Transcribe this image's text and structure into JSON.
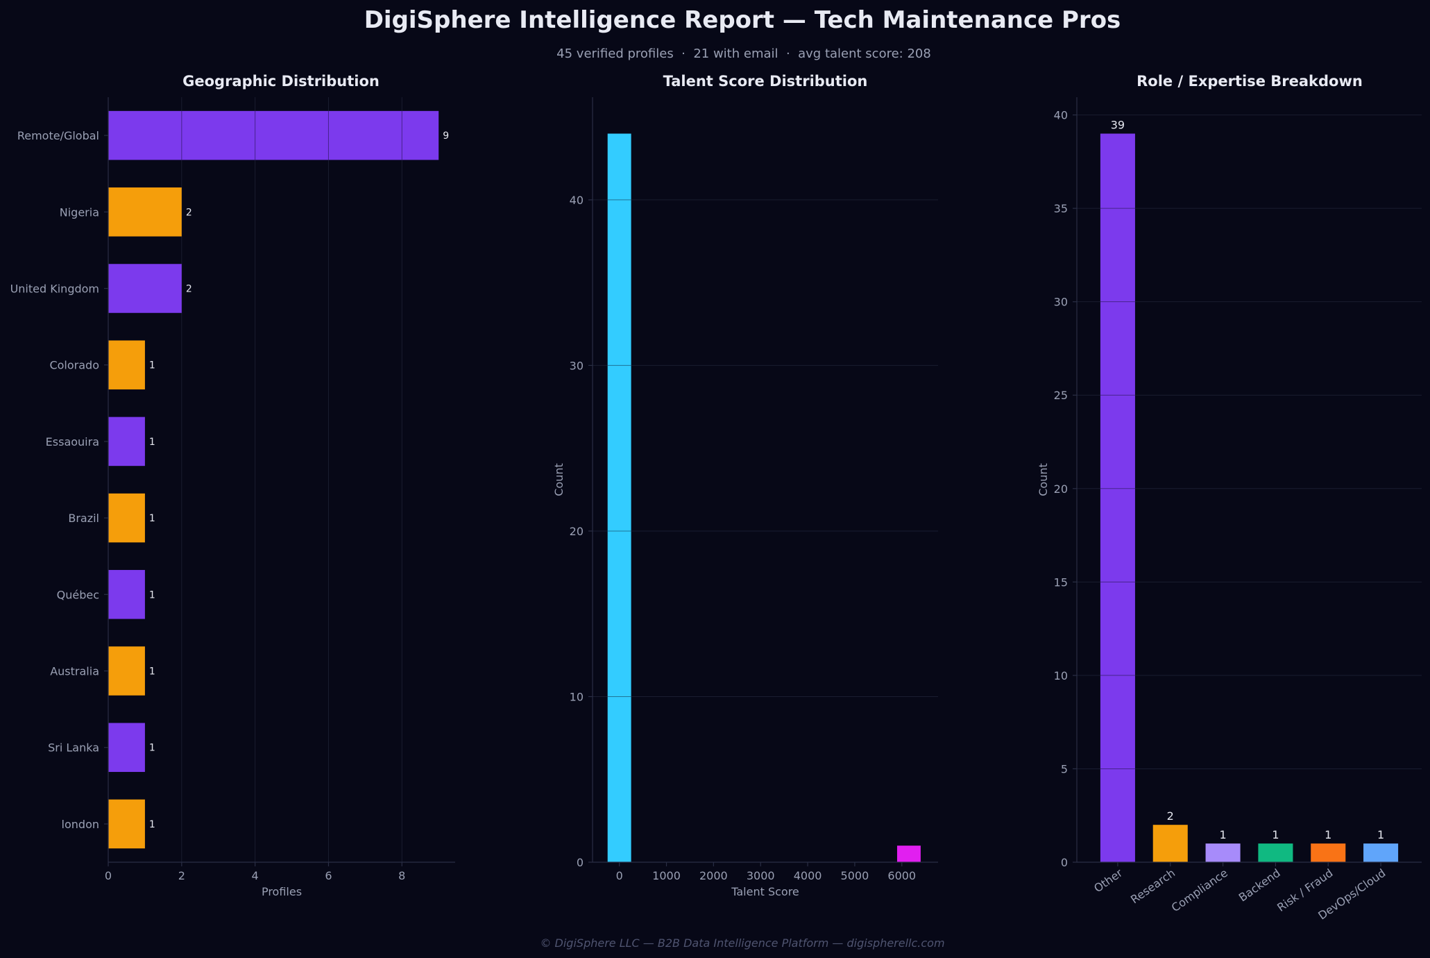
{
  "header": {
    "title": "DigiSphere Intelligence Report — Tech Maintenance Pros",
    "subtitle": "45 verified profiles  ·  21 with email  ·  avg talent score: 208"
  },
  "footer": "© DigiSphere LLC — B2B Data Intelligence Platform — digispherellc.com",
  "colors": {
    "purple": "#7c3aed",
    "orange": "#f59e0b",
    "cyan": "#33ccff",
    "magenta": "#e11ff0",
    "lavender": "#a78bfa",
    "green": "#10b981",
    "red_orange": "#f97316",
    "blue": "#60a5fa"
  },
  "chart_data": [
    {
      "type": "bar",
      "orientation": "horizontal",
      "title": "Geographic Distribution",
      "xlabel": "Profiles",
      "ylabel": "",
      "categories": [
        "Remote/Global",
        "Nigeria",
        "United Kingdom",
        "Colorado",
        "Essaouira",
        "Brazil",
        "Québec",
        "Australia",
        "Sri Lanka",
        "london"
      ],
      "values": [
        9,
        2,
        2,
        1,
        1,
        1,
        1,
        1,
        1,
        1
      ],
      "value_labels": [
        "9",
        "2",
        "2",
        "1",
        "1",
        "1",
        "1",
        "1",
        "1",
        "1"
      ],
      "bar_colors": [
        "#7c3aed",
        "#f59e0b",
        "#7c3aed",
        "#f59e0b",
        "#7c3aed",
        "#f59e0b",
        "#7c3aed",
        "#f59e0b",
        "#7c3aed",
        "#f59e0b"
      ],
      "xticks": [
        0,
        2,
        4,
        6,
        8
      ],
      "xtick_labels": [
        "0",
        "2",
        "4",
        "6",
        "8"
      ],
      "xlim": [
        0,
        9.45
      ],
      "grid": true
    },
    {
      "type": "histogram",
      "title": "Talent Score Distribution",
      "xlabel": "Talent Score",
      "ylabel": "Count",
      "bins": [
        {
          "x0": -250,
          "x1": 250,
          "count": 44,
          "color": "#33ccff"
        },
        {
          "x0": 5900,
          "x1": 6400,
          "count": 1,
          "color": "#e11ff0"
        }
      ],
      "xticks": [
        0,
        1000,
        2000,
        3000,
        4000,
        5000,
        6000
      ],
      "xtick_labels": [
        "0",
        "1000",
        "2000",
        "3000",
        "4000",
        "5000",
        "6000"
      ],
      "yticks": [
        0,
        10,
        20,
        30,
        40
      ],
      "ytick_labels": [
        "0",
        "10",
        "20",
        "30",
        "40"
      ],
      "xlim": [
        -570,
        6770
      ],
      "ylim": [
        0,
        46.2
      ],
      "grid": true
    },
    {
      "type": "bar",
      "orientation": "vertical",
      "title": "Role / Expertise Breakdown",
      "xlabel": "",
      "ylabel": "Count",
      "categories": [
        "Other",
        "Research",
        "Compliance",
        "Backend",
        "Risk / Fraud",
        "DevOps/Cloud"
      ],
      "values": [
        39,
        2,
        1,
        1,
        1,
        1
      ],
      "value_labels": [
        "39",
        "2",
        "1",
        "1",
        "1",
        "1"
      ],
      "bar_colors": [
        "#7c3aed",
        "#f59e0b",
        "#a78bfa",
        "#10b981",
        "#f97316",
        "#60a5fa"
      ],
      "yticks": [
        0,
        5,
        10,
        15,
        20,
        25,
        30,
        35,
        40
      ],
      "ytick_labels": [
        "0",
        "5",
        "10",
        "15",
        "20",
        "25",
        "30",
        "35",
        "40"
      ],
      "ylim": [
        0,
        40.95
      ],
      "grid": true
    }
  ]
}
